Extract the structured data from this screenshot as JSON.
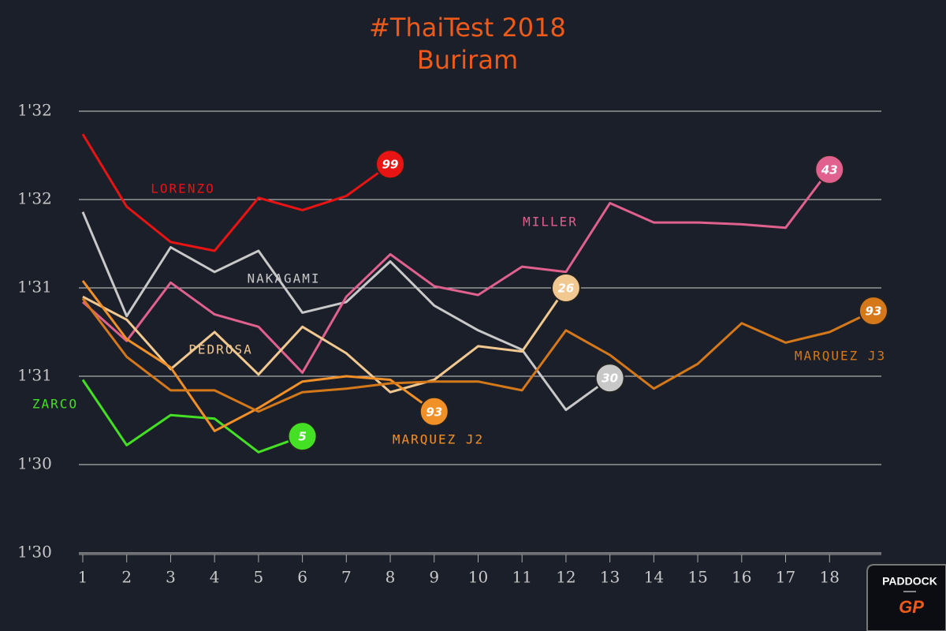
{
  "chart_data": {
    "type": "line",
    "title": "#ThaiTest 2018",
    "subtitle": "Buriram",
    "x": [
      1,
      2,
      3,
      4,
      5,
      6,
      7,
      8,
      9,
      10,
      11,
      12,
      13,
      14,
      15,
      16,
      17,
      18,
      19
    ],
    "xlim": [
      0.91,
      19.18
    ],
    "xticks": [
      1,
      2,
      3,
      4,
      5,
      6,
      7,
      8,
      9,
      10,
      11,
      12,
      13,
      14,
      15,
      16,
      17,
      18
    ],
    "ylim": [
      90,
      92.5
    ],
    "yticks": [
      {
        "value": 90,
        "label": "1'30"
      },
      {
        "value": 90.5,
        "label": "1'30"
      },
      {
        "value": 91,
        "label": "1'31"
      },
      {
        "value": 91.5,
        "label": "1'31"
      },
      {
        "value": 92,
        "label": "1'32"
      },
      {
        "value": 92.5,
        "label": "1'32"
      }
    ],
    "grid": true,
    "series": [
      {
        "name": "LORENZO",
        "badge": "99",
        "color": "#e81414",
        "values": [
          92.37,
          91.96,
          91.76,
          91.71,
          92.01,
          91.94,
          92.02,
          92.2,
          null,
          null,
          null,
          null,
          null,
          null,
          null,
          null,
          null,
          null,
          null
        ]
      },
      {
        "name": "NAKAGAMI",
        "badge": "30",
        "color": "#c8c8c8",
        "values": [
          91.93,
          91.34,
          91.73,
          91.59,
          91.71,
          91.36,
          91.42,
          91.65,
          91.4,
          91.26,
          91.15,
          90.81,
          90.99,
          null,
          null,
          null,
          null,
          null,
          null
        ]
      },
      {
        "name": "MILLER",
        "badge": "43",
        "color": "#e0608e",
        "values": [
          91.42,
          91.2,
          91.53,
          91.35,
          91.28,
          91.02,
          91.45,
          91.69,
          91.51,
          91.46,
          91.62,
          91.59,
          91.98,
          91.87,
          91.87,
          91.86,
          91.84,
          92.17,
          null
        ]
      },
      {
        "name": "PEDROSA",
        "badge": "26",
        "color": "#f0c890",
        "values": [
          91.45,
          91.32,
          91.04,
          91.25,
          91.01,
          91.28,
          91.13,
          90.91,
          90.98,
          91.17,
          91.14,
          91.5,
          null,
          null,
          null,
          null,
          null,
          null,
          null
        ]
      },
      {
        "name": "ZARCO",
        "badge": "5",
        "color": "#44e024",
        "values": [
          90.98,
          90.61,
          90.78,
          90.76,
          90.57,
          90.66,
          null,
          null,
          null,
          null,
          null,
          null,
          null,
          null,
          null,
          null,
          null,
          null,
          null
        ]
      },
      {
        "name": "MARQUEZ J2",
        "badge": "93",
        "color": "#f29028",
        "values": [
          91.54,
          91.21,
          91.05,
          90.69,
          90.82,
          90.97,
          91.0,
          90.98,
          90.8,
          null,
          null,
          null,
          null,
          null,
          null,
          null,
          null,
          null,
          null
        ]
      },
      {
        "name": "MARQUEZ J3",
        "badge": "93",
        "color": "#d4781a",
        "values": [
          91.44,
          91.11,
          90.92,
          90.92,
          90.8,
          90.91,
          90.93,
          90.96,
          90.97,
          90.97,
          90.92,
          91.26,
          91.12,
          90.93,
          91.07,
          91.3,
          91.19,
          91.25,
          91.37
        ]
      }
    ]
  },
  "logo": {
    "top": "PADDOCK",
    "bottom": "GP"
  }
}
